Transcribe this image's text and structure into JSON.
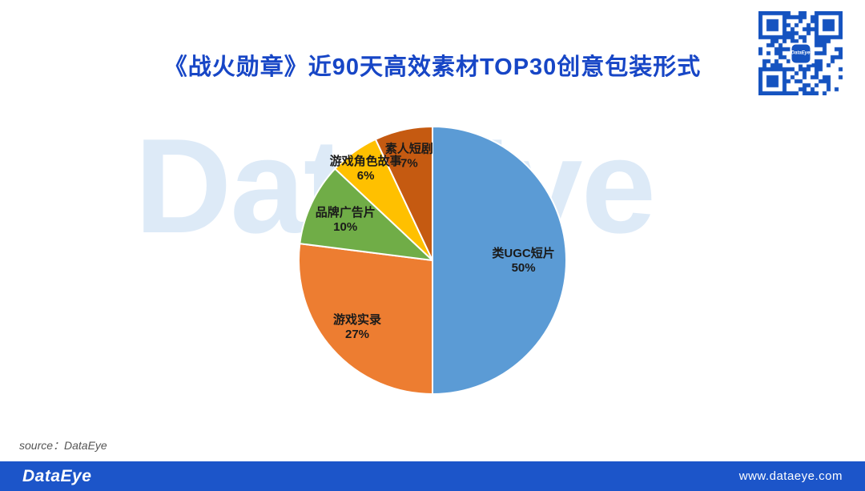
{
  "title": "《战火勋章》近90天高效素材TOP30创意包装形式",
  "title_color": "#1746C6",
  "watermark_text": "DataEye",
  "source_note": "source：DataEye",
  "qr_code": {
    "logo_text": "DataEye",
    "color": "#1553C0"
  },
  "footer": {
    "logo_text": "DataEye",
    "url_text": "www.dataeye.com",
    "bar_color": "#1C55C9"
  },
  "chart_data": {
    "type": "pie",
    "title": "《战火勋章》近90天高效素材TOP30创意包装形式",
    "categories": [
      "类UGC短片",
      "游戏实录",
      "品牌广告片",
      "游戏角色故事",
      "素人短剧"
    ],
    "values": [
      50,
      27,
      10,
      6,
      7
    ],
    "unit": "%",
    "colors": [
      "#5B9BD5",
      "#ED7D31",
      "#70AD47",
      "#FFC000",
      "#C55A11"
    ],
    "start_angle_deg": 0,
    "direction": "clockwise",
    "legend": "none",
    "label_color": "#1a1a1a",
    "label_factors": [
      0.68,
      0.75,
      0.72,
      0.85,
      0.8
    ],
    "slice_ids": [
      "ugc-style-short-video",
      "gameplay-recording",
      "brand-ad-film",
      "game-character-story",
      "amateur-short-drama"
    ]
  }
}
